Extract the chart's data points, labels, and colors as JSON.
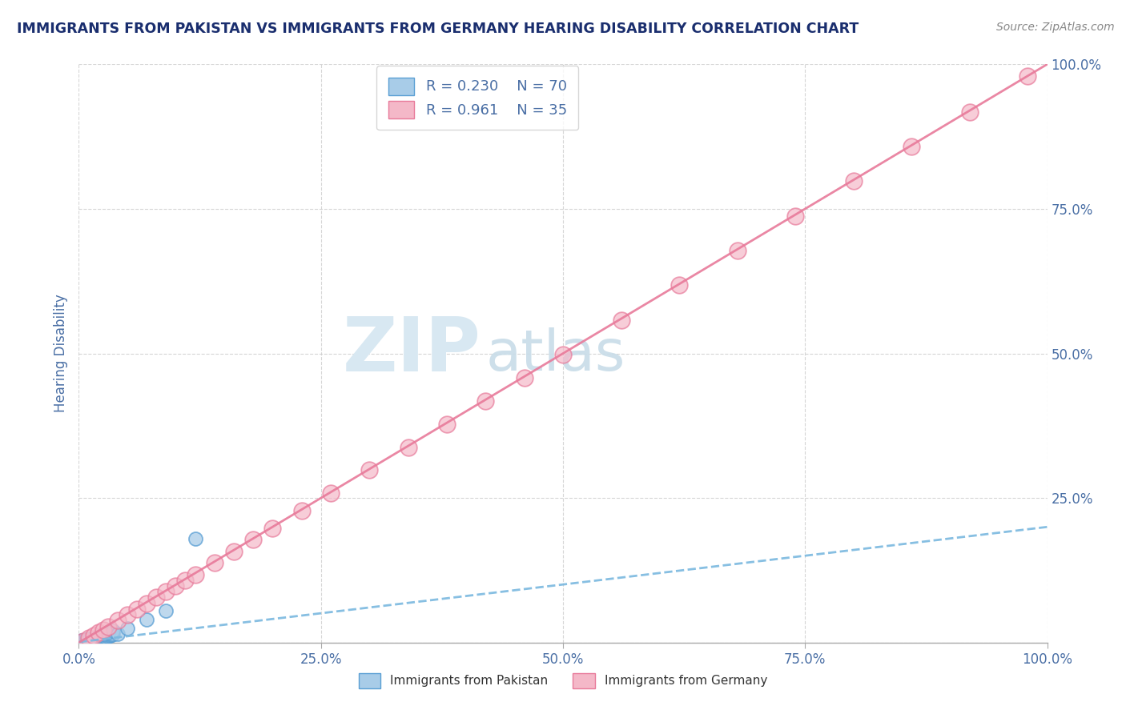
{
  "title": "IMMIGRANTS FROM PAKISTAN VS IMMIGRANTS FROM GERMANY HEARING DISABILITY CORRELATION CHART",
  "source": "Source: ZipAtlas.com",
  "ylabel": "Hearing Disability",
  "xlim": [
    0,
    1
  ],
  "ylim": [
    0,
    1
  ],
  "xticks": [
    0.0,
    0.25,
    0.5,
    0.75,
    1.0
  ],
  "yticks": [
    0.0,
    0.25,
    0.5,
    0.75,
    1.0
  ],
  "xticklabels": [
    "0.0%",
    "25.0%",
    "50.0%",
    "75.0%",
    "100.0%"
  ],
  "yticklabels": [
    "",
    "25.0%",
    "50.0%",
    "75.0%",
    "100.0%"
  ],
  "pakistan_color": "#a8cce8",
  "germany_color": "#f4b8c8",
  "pakistan_edge": "#5a9fd4",
  "germany_edge": "#e87a9a",
  "pakistan_R": 0.23,
  "pakistan_N": 70,
  "germany_R": 0.961,
  "germany_N": 35,
  "watermark_zip": "ZIP",
  "watermark_atlas": "atlas",
  "background_color": "#ffffff",
  "grid_color": "#cccccc",
  "title_color": "#1a2e6e",
  "axis_label_color": "#4a6fa5",
  "tick_label_color": "#4a6fa5",
  "legend_R_color": "#4a6fa5",
  "pakistan_line_color": "#7ab8df",
  "germany_line_color": "#e87a9a",
  "pakistan_scatter_x": [
    0.001,
    0.002,
    0.002,
    0.003,
    0.003,
    0.004,
    0.004,
    0.005,
    0.005,
    0.006,
    0.006,
    0.007,
    0.007,
    0.008,
    0.008,
    0.009,
    0.009,
    0.01,
    0.01,
    0.011,
    0.011,
    0.012,
    0.012,
    0.013,
    0.013,
    0.014,
    0.014,
    0.015,
    0.015,
    0.016,
    0.016,
    0.017,
    0.018,
    0.019,
    0.02,
    0.021,
    0.022,
    0.023,
    0.024,
    0.025,
    0.026,
    0.027,
    0.028,
    0.029,
    0.03,
    0.031,
    0.032,
    0.033,
    0.034,
    0.035,
    0.002,
    0.003,
    0.004,
    0.005,
    0.006,
    0.007,
    0.008,
    0.009,
    0.01,
    0.011,
    0.015,
    0.02,
    0.025,
    0.03,
    0.035,
    0.04,
    0.05,
    0.07,
    0.09,
    0.12
  ],
  "pakistan_scatter_y": [
    0.001,
    0.002,
    0.003,
    0.001,
    0.004,
    0.002,
    0.003,
    0.002,
    0.004,
    0.003,
    0.005,
    0.002,
    0.004,
    0.003,
    0.005,
    0.002,
    0.004,
    0.003,
    0.005,
    0.004,
    0.006,
    0.003,
    0.005,
    0.004,
    0.006,
    0.003,
    0.005,
    0.004,
    0.006,
    0.005,
    0.007,
    0.006,
    0.005,
    0.007,
    0.006,
    0.008,
    0.007,
    0.009,
    0.008,
    0.01,
    0.009,
    0.011,
    0.01,
    0.012,
    0.011,
    0.013,
    0.012,
    0.014,
    0.013,
    0.015,
    0.001,
    0.002,
    0.001,
    0.003,
    0.002,
    0.004,
    0.003,
    0.005,
    0.004,
    0.006,
    0.008,
    0.012,
    0.015,
    0.018,
    0.02,
    0.015,
    0.025,
    0.04,
    0.055,
    0.18
  ],
  "germany_scatter_x": [
    0.005,
    0.01,
    0.015,
    0.02,
    0.025,
    0.03,
    0.04,
    0.05,
    0.06,
    0.07,
    0.08,
    0.09,
    0.1,
    0.11,
    0.12,
    0.14,
    0.16,
    0.18,
    0.2,
    0.23,
    0.26,
    0.3,
    0.34,
    0.38,
    0.42,
    0.46,
    0.5,
    0.56,
    0.62,
    0.68,
    0.74,
    0.8,
    0.86,
    0.92,
    0.98
  ],
  "germany_scatter_y": [
    0.003,
    0.008,
    0.012,
    0.018,
    0.022,
    0.028,
    0.038,
    0.048,
    0.058,
    0.068,
    0.078,
    0.088,
    0.098,
    0.108,
    0.118,
    0.138,
    0.158,
    0.178,
    0.198,
    0.228,
    0.258,
    0.298,
    0.338,
    0.378,
    0.418,
    0.458,
    0.498,
    0.558,
    0.618,
    0.678,
    0.738,
    0.798,
    0.858,
    0.918,
    0.98
  ]
}
